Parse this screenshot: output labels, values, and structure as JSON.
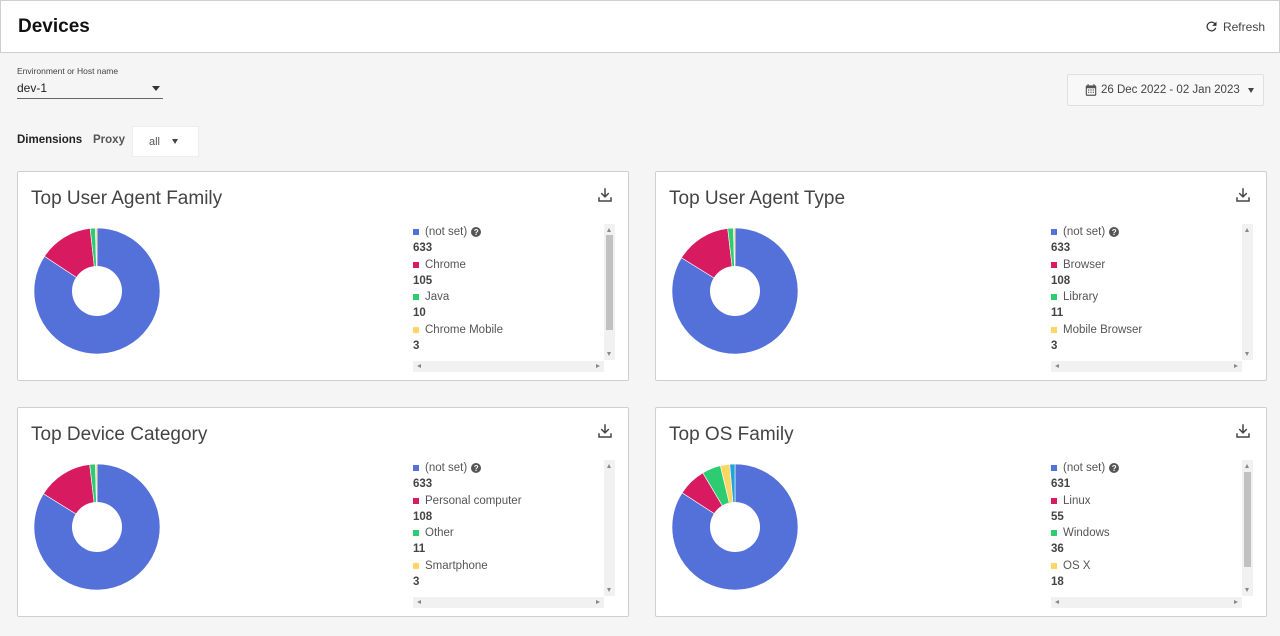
{
  "header": {
    "title": "Devices",
    "refresh_label": "Refresh"
  },
  "filters": {
    "env_label": "Environment or Host name",
    "env_value": "dev-1",
    "date_range": "26 Dec 2022 - 02 Jan 2023",
    "dimensions_label": "Dimensions",
    "proxy_label": "Proxy",
    "proxy_value": "all"
  },
  "colors": {
    "blue": "#5470d9",
    "red": "#d81b60",
    "green": "#2ecc71",
    "yellow": "#fdd663",
    "cyan": "#1fa5d8"
  },
  "chart_data": [
    {
      "type": "pie",
      "title": "Top User Agent Family",
      "categories": [
        "(not set)",
        "Chrome",
        "Java",
        "Chrome Mobile"
      ],
      "values": [
        633,
        105,
        10,
        3
      ],
      "colors": [
        "#5470d9",
        "#d81b60",
        "#2ecc71",
        "#fdd663"
      ],
      "help_on_first": true
    },
    {
      "type": "pie",
      "title": "Top User Agent Type",
      "categories": [
        "(not set)",
        "Browser",
        "Library",
        "Mobile Browser"
      ],
      "values": [
        633,
        108,
        11,
        3
      ],
      "colors": [
        "#5470d9",
        "#d81b60",
        "#2ecc71",
        "#fdd663"
      ],
      "help_on_first": true
    },
    {
      "type": "pie",
      "title": "Top Device Category",
      "categories": [
        "(not set)",
        "Personal computer",
        "Other",
        "Smartphone"
      ],
      "values": [
        633,
        108,
        11,
        3
      ],
      "colors": [
        "#5470d9",
        "#d81b60",
        "#2ecc71",
        "#fdd663"
      ],
      "help_on_first": true
    },
    {
      "type": "pie",
      "title": "Top OS Family",
      "categories": [
        "(not set)",
        "Linux",
        "Windows",
        "OS X"
      ],
      "values": [
        631,
        55,
        36,
        18
      ],
      "extra_slices": [
        {
          "value": 10,
          "color": "#1fa5d8"
        }
      ],
      "colors": [
        "#5470d9",
        "#d81b60",
        "#2ecc71",
        "#fdd663"
      ],
      "help_on_first": true
    }
  ]
}
